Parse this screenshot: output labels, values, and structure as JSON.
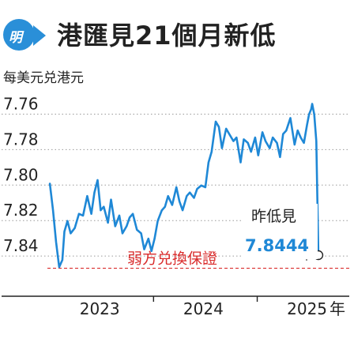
{
  "header": {
    "title": "港匯見21個月新低",
    "logo_text": "明",
    "logo_icon": "ming-pao-logo-icon",
    "accent": "#2a8fd8"
  },
  "chart_data": {
    "type": "line",
    "ylabel": "每美元兑港元",
    "y_inverted": true,
    "ylim": [
      7.754,
      7.864
    ],
    "yticks": [
      "7.76",
      "7.78",
      "7.80",
      "7.82",
      "7.84"
    ],
    "xticks": [
      "2023",
      "2024",
      "2025"
    ],
    "x_unit": "年",
    "xlim": [
      2022.9,
      2025.72
    ],
    "series": [
      {
        "color": "#1f88d6",
        "x": [
          2023.0,
          2023.03,
          2023.06,
          2023.09,
          2023.12,
          2023.14,
          2023.17,
          2023.2,
          2023.24,
          2023.28,
          2023.32,
          2023.36,
          2023.4,
          2023.43,
          2023.46,
          2023.49,
          2023.52,
          2023.56,
          2023.59,
          2023.63,
          2023.67,
          2023.7,
          2023.74,
          2023.77,
          2023.8,
          2023.84,
          2023.88,
          2023.91,
          2023.95,
          2023.98,
          2024.01,
          2024.04,
          2024.08,
          2024.11,
          2024.14,
          2024.18,
          2024.22,
          2024.25,
          2024.28,
          2024.32,
          2024.35,
          2024.39,
          2024.42,
          2024.46,
          2024.5,
          2024.53,
          2024.56,
          2024.6,
          2024.63,
          2024.66,
          2024.7,
          2024.73,
          2024.77,
          2024.8,
          2024.84,
          2024.87,
          2024.91,
          2024.94,
          2024.98,
          2025.01,
          2025.05,
          2025.08,
          2025.12,
          2025.15,
          2025.19,
          2025.22,
          2025.25,
          2025.28,
          2025.32,
          2025.36,
          2025.39,
          2025.42,
          2025.45,
          2025.48,
          2025.5,
          2025.52,
          2025.53,
          2025.55,
          2025.57,
          2025.59
        ],
        "values": [
          7.805,
          7.82,
          7.838,
          7.852,
          7.848,
          7.832,
          7.826,
          7.833,
          7.83,
          7.822,
          7.823,
          7.812,
          7.822,
          7.81,
          7.803,
          7.82,
          7.818,
          7.827,
          7.814,
          7.829,
          7.823,
          7.833,
          7.829,
          7.824,
          7.822,
          7.831,
          7.833,
          7.842,
          7.836,
          7.843,
          7.836,
          7.826,
          7.82,
          7.818,
          7.812,
          7.817,
          7.807,
          7.815,
          7.82,
          7.812,
          7.81,
          7.813,
          7.808,
          7.806,
          7.807,
          7.793,
          7.787,
          7.77,
          7.773,
          7.785,
          7.774,
          7.777,
          7.781,
          7.779,
          7.793,
          7.78,
          7.782,
          7.787,
          7.779,
          7.789,
          7.776,
          7.781,
          7.785,
          7.779,
          7.782,
          7.79,
          7.777,
          7.775,
          7.768,
          7.783,
          7.775,
          7.779,
          7.782,
          7.772,
          7.766,
          7.763,
          7.76,
          7.766,
          7.781,
          7.8444
        ]
      }
    ],
    "reference_line": {
      "label": "弱方兑換保證",
      "value": 7.85,
      "color": "#d92b2b"
    },
    "callout": {
      "label": "昨低見",
      "value": "7.8444"
    }
  }
}
